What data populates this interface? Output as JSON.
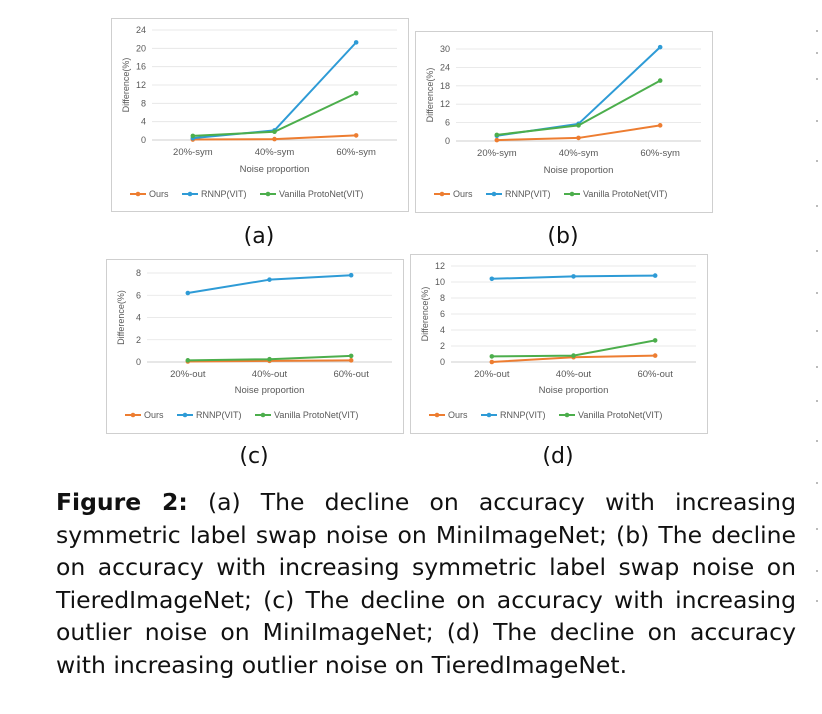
{
  "colors": {
    "ours": "#ED7D31",
    "rnnp": "#2E9BD6",
    "vanilla": "#4CAE4C",
    "grid": "#e3e3e3",
    "axis": "#595959"
  },
  "chart_data": [
    {
      "type": "line",
      "panel_label": "(a)",
      "categories": [
        "20%-sym",
        "40%-sym",
        "60%-sym"
      ],
      "xlabel": "Noise proportion",
      "ylabel": "Difference(%)",
      "ylim": [
        0,
        24
      ],
      "yticks": [
        0,
        4,
        8,
        12,
        16,
        20,
        24
      ],
      "series": [
        {
          "name": "Ours",
          "key": "ours",
          "values": [
            0.1,
            0.2,
            1.0
          ]
        },
        {
          "name": "RNNP(VIT)",
          "key": "rnnp",
          "values": [
            0.4,
            2.1,
            21.3
          ]
        },
        {
          "name": "Vanilla ProtoNet(VIT)",
          "key": "vanilla",
          "values": [
            0.9,
            1.8,
            10.2
          ]
        }
      ]
    },
    {
      "type": "line",
      "panel_label": "(b)",
      "categories": [
        "20%-sym",
        "40%-sym",
        "60%-sym"
      ],
      "xlabel": "Noise proportion",
      "ylabel": "Difference(%)",
      "ylim": [
        0,
        30
      ],
      "yticks": [
        0,
        6,
        12,
        18,
        24,
        30
      ],
      "series": [
        {
          "name": "Ours",
          "key": "ours",
          "values": [
            0.3,
            1.0,
            5.1
          ]
        },
        {
          "name": "RNNP(VIT)",
          "key": "rnnp",
          "values": [
            1.7,
            5.6,
            30.6
          ]
        },
        {
          "name": "Vanilla ProtoNet(VIT)",
          "key": "vanilla",
          "values": [
            2.0,
            5.1,
            19.7
          ]
        }
      ]
    },
    {
      "type": "line",
      "panel_label": "(c)",
      "categories": [
        "20%-out",
        "40%-out",
        "60%-out"
      ],
      "xlabel": "Noise proportion",
      "ylabel": "Difference(%)",
      "ylim": [
        0,
        8
      ],
      "yticks": [
        0,
        2,
        4,
        6,
        8
      ],
      "series": [
        {
          "name": "Ours",
          "key": "ours",
          "values": [
            0.05,
            0.1,
            0.15
          ]
        },
        {
          "name": "RNNP(VIT)",
          "key": "rnnp",
          "values": [
            6.2,
            7.4,
            7.8
          ]
        },
        {
          "name": "Vanilla ProtoNet(VIT)",
          "key": "vanilla",
          "values": [
            0.15,
            0.25,
            0.55
          ]
        }
      ]
    },
    {
      "type": "line",
      "panel_label": "(d)",
      "categories": [
        "20%-out",
        "40%-out",
        "60%-out"
      ],
      "xlabel": "Noise proportion",
      "ylabel": "Difference(%)",
      "ylim": [
        0,
        12
      ],
      "yticks": [
        0,
        2,
        4,
        6,
        8,
        10,
        12
      ],
      "series": [
        {
          "name": "Ours",
          "key": "ours",
          "values": [
            0.0,
            0.6,
            0.8
          ]
        },
        {
          "name": "RNNP(VIT)",
          "key": "rnnp",
          "values": [
            10.4,
            10.7,
            10.8
          ]
        },
        {
          "name": "Vanilla ProtoNet(VIT)",
          "key": "vanilla",
          "values": [
            0.7,
            0.8,
            2.7
          ]
        }
      ]
    }
  ],
  "caption": {
    "label": "Figure 2:",
    "text": "(a) The decline on accuracy with increasing symmetric label swap noise on MiniImageNet; (b) The decline on accuracy with increasing symmetric label swap noise on TieredImageNet; (c) The decline on accuracy with increasing outlier noise on MiniImageNet; (d) The decline on accuracy with increasing outlier noise on TieredImageNet."
  }
}
